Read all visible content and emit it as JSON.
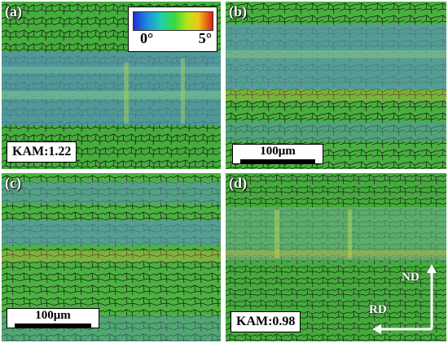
{
  "panels": [
    {
      "label": "(a)",
      "kam": "KAM:1.22"
    },
    {
      "label": "(b)",
      "scale_bar": "100μm"
    },
    {
      "label": "(c)",
      "scale_bar": "100μm"
    },
    {
      "label": "(d)",
      "kam": "KAM:0.98"
    }
  ],
  "legend": {
    "min_label": "0°",
    "max_label": "5°",
    "colors": [
      "#1d2fd6",
      "#1fd0b0",
      "#3bd83a",
      "#f0c418",
      "#e0201c"
    ]
  },
  "axes": {
    "vertical": "ND",
    "horizontal": "RD"
  },
  "colors": {
    "grain_green": "#3fa83a",
    "band_blue": "#4a86b8",
    "boundary": "#1a1a1a"
  }
}
